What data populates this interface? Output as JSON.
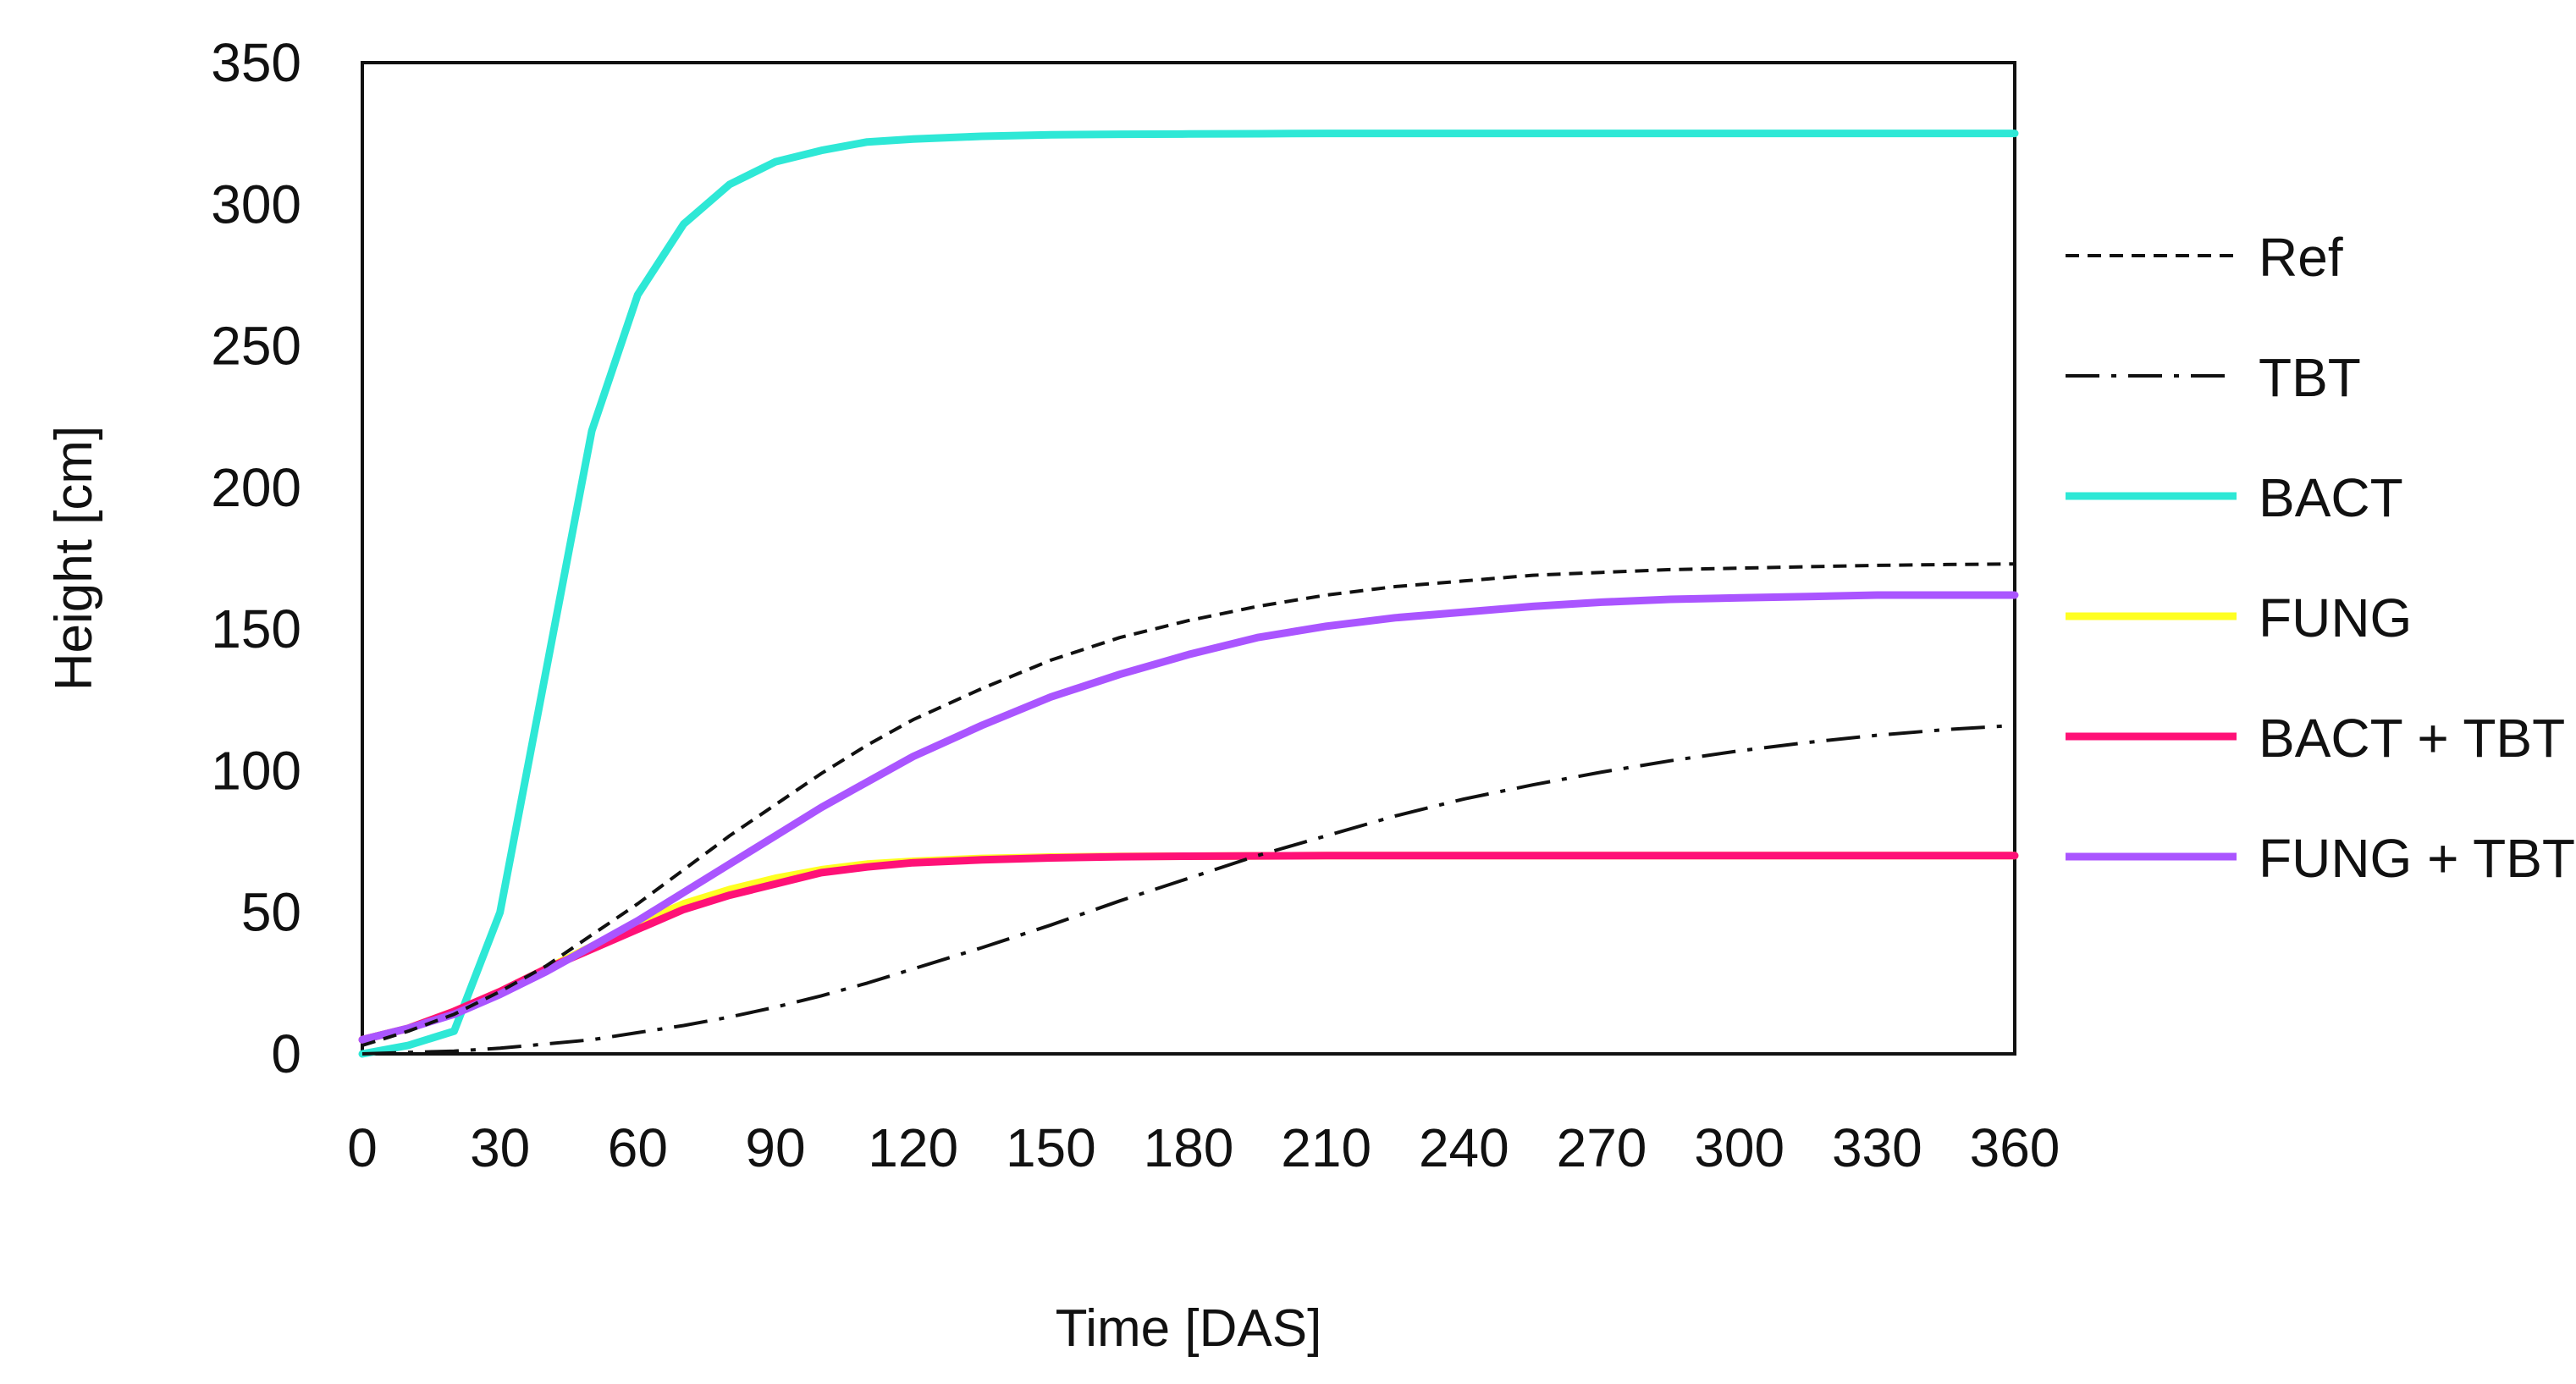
{
  "chart_data": {
    "type": "line",
    "title": "",
    "xlabel": "Time [DAS]",
    "ylabel": "Height [cm]",
    "xlim": [
      0,
      360
    ],
    "ylim": [
      0,
      350
    ],
    "xticks": [
      0,
      30,
      60,
      90,
      120,
      150,
      180,
      210,
      240,
      270,
      300,
      330,
      360
    ],
    "yticks": [
      0,
      50,
      100,
      150,
      200,
      250,
      300,
      350
    ],
    "grid": false,
    "legend_position": "right",
    "x": [
      0,
      10,
      20,
      30,
      40,
      50,
      60,
      70,
      80,
      90,
      100,
      110,
      120,
      135,
      150,
      165,
      180,
      195,
      210,
      225,
      240,
      255,
      270,
      285,
      300,
      315,
      330,
      345,
      360
    ],
    "series": [
      {
        "name": "Ref",
        "style": "dashed",
        "color": "#111111",
        "values": [
          3,
          8,
          14,
          22,
          31,
          42,
          53,
          65,
          77,
          88,
          99,
          109,
          118,
          129,
          139,
          147,
          153,
          158,
          162,
          165,
          167,
          169,
          170,
          171,
          171.5,
          172,
          172.5,
          172.8,
          173
        ]
      },
      {
        "name": "TBT",
        "style": "dashdot",
        "color": "#111111",
        "values": [
          0,
          0.5,
          1,
          2,
          3.5,
          5,
          7.5,
          10,
          13,
          16.5,
          20.5,
          25,
          30,
          37.5,
          45.5,
          54,
          62,
          70,
          77,
          84,
          90,
          95,
          99.5,
          103.5,
          107,
          110,
          112.5,
          114.5,
          116
        ]
      },
      {
        "name": "BACT",
        "style": "solid",
        "color": "#2ee8d6",
        "values": [
          0,
          3,
          8,
          50,
          135,
          220,
          268,
          293,
          307,
          315,
          319,
          322,
          323,
          324,
          324.5,
          324.7,
          324.8,
          324.9,
          325,
          325,
          325,
          325,
          325,
          325,
          325,
          325,
          325,
          325,
          325
        ]
      },
      {
        "name": "FUNG",
        "style": "solid",
        "color": "#ffff22",
        "values": [
          5,
          9,
          15,
          22,
          30,
          38,
          46,
          53,
          58,
          62,
          65,
          67,
          68,
          69,
          69.5,
          69.7,
          69.8,
          69.9,
          70,
          70,
          70,
          70,
          70,
          70,
          70,
          70,
          70,
          70,
          70
        ]
      },
      {
        "name": "BACT + TBT",
        "style": "solid",
        "color": "#ff1177",
        "values": [
          5,
          9,
          15,
          22,
          30,
          37,
          44,
          51,
          56,
          60,
          64,
          66,
          67.5,
          68.5,
          69.2,
          69.6,
          69.8,
          69.9,
          70,
          70,
          70,
          70,
          70,
          70,
          70,
          70,
          70,
          70,
          70
        ]
      },
      {
        "name": "FUNG + TBT",
        "style": "solid",
        "color": "#aa55ff",
        "values": [
          5,
          9,
          14,
          21,
          29,
          38,
          47,
          57,
          67,
          77,
          87,
          96,
          105,
          116,
          126,
          134,
          141,
          147,
          151,
          154,
          156,
          158,
          159.5,
          160.5,
          161,
          161.5,
          162,
          162,
          162
        ]
      }
    ]
  }
}
